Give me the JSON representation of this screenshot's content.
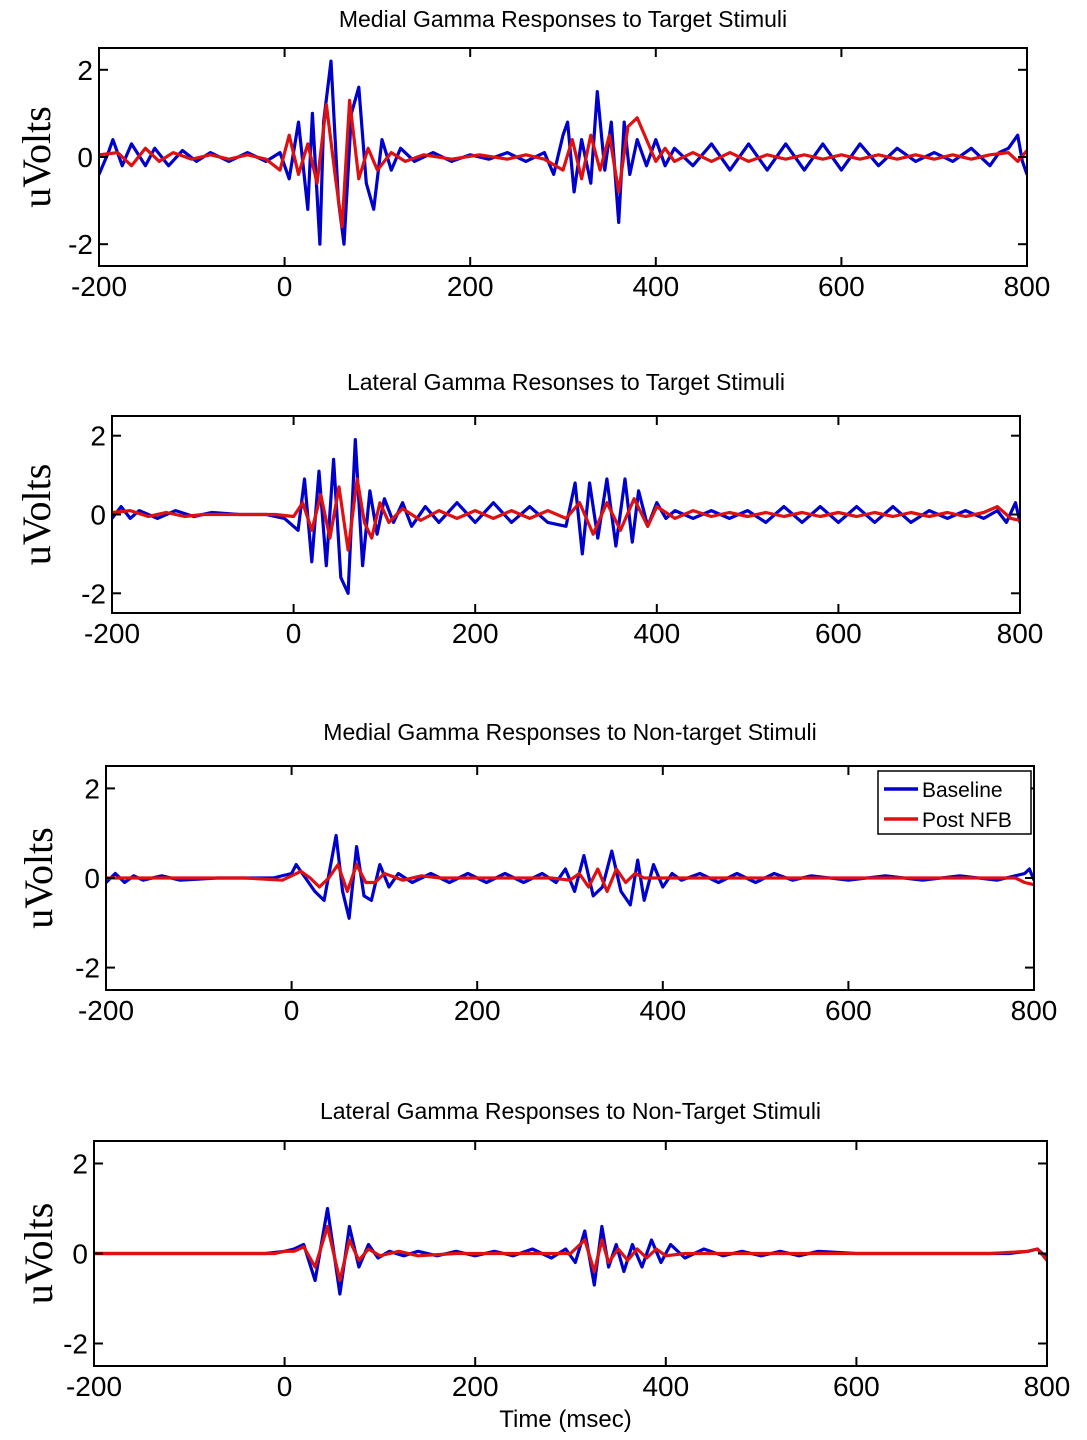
{
  "chart_data": [
    {
      "type": "line",
      "title": "Medial Gamma Responses to Target Stimuli",
      "ylabel": "uVolts",
      "xlabel": "",
      "xlim": [
        -200,
        800
      ],
      "ylim": [
        -2.5,
        2.5
      ],
      "xticks": [
        "-200",
        "0",
        "200",
        "400",
        "600",
        "800"
      ],
      "yticks": [
        "-2",
        "0",
        "2"
      ],
      "legend": null,
      "series": [
        {
          "color": "#0000cc",
          "x": [
            -200,
            -190,
            -185,
            -175,
            -165,
            -150,
            -140,
            -125,
            -110,
            -95,
            -80,
            -60,
            -40,
            -20,
            -5,
            5,
            15,
            25,
            30,
            38,
            42,
            50,
            58,
            64,
            72,
            80,
            88,
            96,
            105,
            115,
            125,
            140,
            160,
            180,
            200,
            220,
            240,
            260,
            280,
            290,
            300,
            305,
            312,
            320,
            330,
            337,
            345,
            352,
            360,
            366,
            372,
            380,
            390,
            400,
            410,
            420,
            440,
            460,
            480,
            500,
            520,
            540,
            560,
            580,
            600,
            620,
            640,
            660,
            680,
            700,
            720,
            740,
            760,
            770,
            780,
            790,
            795,
            800
          ],
          "y": [
            -0.4,
            0.1,
            0.4,
            -0.2,
            0.3,
            -0.2,
            0.2,
            -0.2,
            0.15,
            -0.1,
            0.1,
            -0.1,
            0.1,
            -0.1,
            0.1,
            -0.5,
            0.8,
            -1.2,
            1.0,
            -2.0,
            0.8,
            2.2,
            -1.0,
            -2.0,
            1.0,
            1.6,
            -0.6,
            -1.2,
            0.4,
            -0.3,
            0.2,
            -0.1,
            0.1,
            -0.1,
            0.05,
            -0.05,
            0.1,
            -0.1,
            0.1,
            -0.4,
            0.5,
            0.8,
            -0.8,
            0.4,
            -0.6,
            1.5,
            -0.3,
            0.8,
            -1.5,
            0.8,
            -0.4,
            0.4,
            -0.2,
            0.4,
            -0.2,
            0.2,
            -0.2,
            0.3,
            -0.3,
            0.3,
            -0.3,
            0.3,
            -0.3,
            0.3,
            -0.3,
            0.3,
            -0.2,
            0.2,
            -0.1,
            0.1,
            -0.1,
            0.2,
            -0.2,
            0.1,
            0.2,
            0.5,
            -0.1,
            -0.4
          ]
        },
        {
          "color": "#dd1111",
          "x": [
            -200,
            -180,
            -165,
            -150,
            -135,
            -120,
            -100,
            -80,
            -60,
            -40,
            -20,
            -5,
            5,
            15,
            25,
            35,
            45,
            55,
            62,
            70,
            80,
            90,
            100,
            115,
            130,
            150,
            180,
            210,
            240,
            260,
            280,
            300,
            310,
            320,
            330,
            340,
            350,
            360,
            370,
            380,
            400,
            410,
            420,
            440,
            460,
            480,
            500,
            520,
            540,
            560,
            580,
            600,
            620,
            640,
            660,
            680,
            700,
            720,
            740,
            760,
            780,
            790,
            800
          ],
          "y": [
            0.05,
            0.1,
            -0.2,
            0.2,
            -0.1,
            0.1,
            -0.05,
            0.05,
            -0.05,
            0.05,
            -0.05,
            -0.3,
            0.5,
            -0.4,
            0.3,
            -0.6,
            1.2,
            -0.5,
            -1.6,
            1.3,
            -0.5,
            0.2,
            -0.3,
            0.1,
            -0.1,
            0.05,
            -0.05,
            0.05,
            -0.05,
            0.05,
            -0.05,
            -0.3,
            0.4,
            -0.5,
            0.5,
            -0.3,
            0.5,
            -0.8,
            0.7,
            0.9,
            -0.1,
            0.2,
            -0.1,
            0.1,
            -0.1,
            0.1,
            -0.1,
            0.05,
            -0.05,
            0.05,
            -0.05,
            0.05,
            -0.05,
            0.05,
            -0.05,
            0.05,
            -0.05,
            0.05,
            -0.05,
            0.05,
            0.1,
            -0.1,
            0.15
          ]
        }
      ]
    },
    {
      "type": "line",
      "title": "Lateral Gamma Resonses to Target Stimuli",
      "ylabel": "uVolts",
      "xlabel": "",
      "xlim": [
        -200,
        800
      ],
      "ylim": [
        -2.5,
        2.5
      ],
      "xticks": [
        "-200",
        "0",
        "200",
        "400",
        "600",
        "800"
      ],
      "yticks": [
        "-2",
        "0",
        "2"
      ],
      "legend": null,
      "series": [
        {
          "color": "#0000cc",
          "x": [
            -200,
            -190,
            -180,
            -170,
            -150,
            -130,
            -110,
            -90,
            -60,
            -30,
            -10,
            5,
            12,
            20,
            28,
            36,
            44,
            52,
            60,
            68,
            76,
            84,
            92,
            100,
            110,
            120,
            130,
            145,
            160,
            180,
            200,
            220,
            240,
            260,
            280,
            300,
            310,
            318,
            326,
            335,
            345,
            355,
            365,
            373,
            380,
            390,
            400,
            410,
            420,
            440,
            460,
            480,
            500,
            520,
            540,
            560,
            580,
            600,
            620,
            640,
            660,
            680,
            700,
            720,
            740,
            760,
            775,
            785,
            795,
            800
          ],
          "y": [
            -0.1,
            0.2,
            -0.1,
            0.1,
            -0.1,
            0.1,
            -0.05,
            0.05,
            0,
            0,
            -0.1,
            -0.4,
            0.9,
            -1.2,
            1.1,
            -1.3,
            1.4,
            -1.6,
            -2.0,
            1.9,
            -1.3,
            0.6,
            -0.5,
            0.4,
            -0.2,
            0.3,
            -0.3,
            0.2,
            -0.2,
            0.3,
            -0.2,
            0.3,
            -0.2,
            0.2,
            -0.2,
            -0.3,
            0.8,
            -1.0,
            0.8,
            -0.6,
            0.9,
            -0.8,
            0.9,
            -0.7,
            0.6,
            -0.3,
            0.3,
            -0.1,
            0.1,
            -0.1,
            0.1,
            -0.1,
            0.1,
            -0.2,
            0.2,
            -0.2,
            0.2,
            -0.2,
            0.2,
            -0.2,
            0.2,
            -0.2,
            0.1,
            -0.1,
            0.1,
            -0.1,
            0.1,
            -0.2,
            0.3,
            -0.2
          ]
        },
        {
          "color": "#dd1111",
          "x": [
            -200,
            -180,
            -160,
            -140,
            -120,
            -100,
            -60,
            -20,
            0,
            10,
            20,
            30,
            40,
            50,
            60,
            70,
            78,
            86,
            95,
            105,
            120,
            140,
            160,
            180,
            200,
            220,
            240,
            260,
            280,
            300,
            315,
            330,
            345,
            360,
            375,
            390,
            400,
            420,
            440,
            460,
            480,
            500,
            520,
            540,
            560,
            580,
            600,
            620,
            640,
            660,
            680,
            700,
            720,
            740,
            760,
            775,
            790,
            800
          ],
          "y": [
            0.05,
            0.1,
            -0.05,
            0.05,
            -0.05,
            0,
            0,
            0,
            -0.05,
            0.3,
            -0.4,
            0.5,
            -0.6,
            0.7,
            -0.9,
            0.9,
            -0.2,
            -0.6,
            0.3,
            -0.2,
            0.15,
            -0.15,
            0.1,
            -0.1,
            0.1,
            -0.1,
            0.1,
            -0.1,
            0.1,
            -0.1,
            0.3,
            -0.5,
            0.3,
            -0.4,
            0.4,
            -0.3,
            0.2,
            -0.1,
            0.1,
            -0.05,
            0.05,
            -0.05,
            0.05,
            -0.05,
            0.05,
            -0.05,
            0.05,
            -0.05,
            0.05,
            -0.05,
            0.05,
            -0.05,
            0.05,
            -0.05,
            0.05,
            0.2,
            -0.1,
            -0.15
          ]
        }
      ]
    },
    {
      "type": "line",
      "title": "Medial Gamma Responses to Non-target Stimuli",
      "ylabel": "uVolts",
      "xlabel": "",
      "xlim": [
        -200,
        800
      ],
      "ylim": [
        -2.5,
        2.5
      ],
      "xticks": [
        "-200",
        "0",
        "200",
        "400",
        "600",
        "800"
      ],
      "yticks": [
        "-2",
        "0",
        "2"
      ],
      "legend": {
        "position": "top-right",
        "entries": [
          "Baseline",
          "Post NFB"
        ]
      },
      "series": [
        {
          "name": "Baseline",
          "color": "#0000cc",
          "x": [
            -200,
            -190,
            -180,
            -170,
            -160,
            -140,
            -120,
            -80,
            -40,
            -20,
            0,
            5,
            15,
            25,
            35,
            48,
            55,
            62,
            70,
            78,
            86,
            95,
            105,
            115,
            130,
            150,
            170,
            190,
            210,
            230,
            250,
            270,
            285,
            295,
            305,
            315,
            325,
            335,
            345,
            355,
            365,
            373,
            380,
            390,
            400,
            410,
            420,
            440,
            460,
            480,
            500,
            520,
            540,
            560,
            600,
            640,
            680,
            720,
            760,
            790,
            795,
            800
          ],
          "y": [
            -0.1,
            0.1,
            -0.1,
            0.05,
            -0.05,
            0.05,
            -0.05,
            0,
            0,
            0,
            0.1,
            0.3,
            0,
            -0.3,
            -0.5,
            0.95,
            -0.3,
            -0.9,
            0.7,
            -0.4,
            -0.5,
            0.3,
            -0.2,
            0.1,
            -0.1,
            0.1,
            -0.1,
            0.1,
            -0.1,
            0.1,
            -0.1,
            0.1,
            -0.1,
            0.2,
            -0.3,
            0.5,
            -0.4,
            -0.2,
            0.6,
            -0.3,
            -0.6,
            0.4,
            -0.5,
            0.3,
            -0.2,
            0.1,
            -0.05,
            0.1,
            -0.1,
            0.1,
            -0.1,
            0.1,
            -0.05,
            0.05,
            -0.05,
            0.05,
            -0.05,
            0.05,
            -0.05,
            0.1,
            0.2,
            -0.05
          ]
        },
        {
          "name": "Post NFB",
          "color": "#dd1111",
          "x": [
            -200,
            -180,
            -150,
            -100,
            -50,
            -10,
            0,
            10,
            20,
            30,
            40,
            50,
            60,
            70,
            80,
            90,
            100,
            120,
            140,
            160,
            200,
            240,
            280,
            300,
            310,
            320,
            330,
            340,
            350,
            360,
            370,
            380,
            390,
            400,
            420,
            460,
            500,
            560,
            620,
            680,
            740,
            780,
            790,
            800
          ],
          "y": [
            0,
            0,
            0,
            0,
            0,
            -0.05,
            0.05,
            0.15,
            0,
            -0.2,
            0,
            0.3,
            -0.3,
            0.3,
            -0.1,
            -0.1,
            0.1,
            -0.05,
            0.05,
            0,
            0,
            0,
            0,
            -0.05,
            0.1,
            -0.2,
            0.2,
            -0.3,
            0.2,
            -0.1,
            0.1,
            0,
            0,
            0,
            0,
            0,
            0,
            0,
            0,
            0,
            0,
            0,
            -0.1,
            -0.15
          ]
        }
      ]
    },
    {
      "type": "line",
      "title": "Lateral Gamma Responses to Non-Target Stimuli",
      "ylabel": "uVolts",
      "xlabel": "Time (msec)",
      "xlim": [
        -200,
        800
      ],
      "ylim": [
        -2.5,
        2.5
      ],
      "xticks": [
        "-200",
        "0",
        "200",
        "400",
        "600",
        "800"
      ],
      "yticks": [
        "-2",
        "0",
        "2"
      ],
      "legend": null,
      "series": [
        {
          "color": "#0000cc",
          "x": [
            -200,
            -150,
            -100,
            -50,
            -20,
            0,
            10,
            20,
            32,
            45,
            58,
            68,
            78,
            88,
            98,
            110,
            125,
            140,
            160,
            180,
            200,
            220,
            240,
            260,
            280,
            295,
            305,
            315,
            325,
            333,
            340,
            348,
            356,
            365,
            375,
            385,
            395,
            405,
            420,
            440,
            460,
            480,
            500,
            520,
            540,
            560,
            600,
            640,
            680,
            720,
            760,
            780,
            790,
            800
          ],
          "y": [
            0,
            0,
            0,
            0,
            0,
            0.05,
            0.1,
            0.2,
            -0.6,
            1.0,
            -0.9,
            0.6,
            -0.3,
            0.2,
            -0.1,
            0.05,
            -0.05,
            0.05,
            -0.05,
            0.05,
            -0.05,
            0.05,
            -0.05,
            0.1,
            -0.1,
            0.1,
            -0.2,
            0.5,
            -0.7,
            0.6,
            -0.3,
            0.2,
            -0.4,
            0.2,
            -0.3,
            0.3,
            -0.2,
            0.2,
            -0.1,
            0.1,
            -0.05,
            0.05,
            -0.05,
            0.05,
            -0.05,
            0.05,
            0,
            0,
            0,
            0,
            0,
            0.05,
            0.1,
            -0.1
          ]
        },
        {
          "color": "#dd1111",
          "x": [
            -200,
            -150,
            -100,
            -50,
            -10,
            0,
            10,
            20,
            32,
            45,
            58,
            68,
            78,
            88,
            100,
            120,
            140,
            180,
            220,
            260,
            300,
            315,
            325,
            333,
            340,
            350,
            360,
            370,
            380,
            390,
            400,
            420,
            460,
            500,
            560,
            620,
            680,
            740,
            780,
            790,
            800
          ],
          "y": [
            0,
            0,
            0,
            0,
            0,
            0.05,
            0.05,
            0.15,
            -0.3,
            0.6,
            -0.6,
            0.3,
            -0.15,
            0.1,
            -0.05,
            0.05,
            -0.05,
            0,
            0,
            0,
            0,
            0.3,
            -0.4,
            0.3,
            -0.2,
            0.1,
            -0.15,
            0.1,
            -0.1,
            0.1,
            -0.05,
            0,
            0,
            0,
            0,
            0,
            0,
            0,
            0.05,
            0.1,
            -0.15
          ]
        }
      ]
    }
  ]
}
